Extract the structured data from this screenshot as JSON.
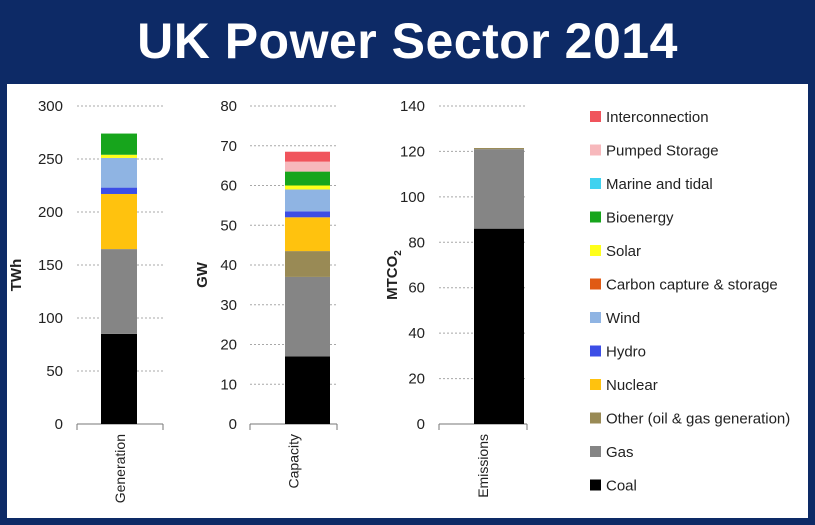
{
  "title": "UK Power Sector 2014",
  "colors": {
    "banner_bg": "#0d2a66",
    "Interconnection": "#f0545c",
    "Pumped Storage": "#f7b8bc",
    "Marine and tidal": "#3fd2f0",
    "Bioenergy": "#17a51c",
    "Solar": "#ffff1a",
    "Carbon capture & storage": "#e05a14",
    "Wind": "#8fb4e3",
    "Hydro": "#3c4ee6",
    "Nuclear": "#ffc20e",
    "Other (oil & gas generation)": "#998a55",
    "Gas": "#858585",
    "Coal": "#000000"
  },
  "legend": [
    "Interconnection",
    "Pumped Storage",
    "Marine and tidal",
    "Bioenergy",
    "Solar",
    "Carbon capture & storage",
    "Wind",
    "Hydro",
    "Nuclear",
    "Other (oil & gas generation)",
    "Gas",
    "Coal"
  ],
  "chart_data": [
    {
      "type": "bar",
      "stacked": true,
      "categories": [
        "Generation"
      ],
      "ylabel": "TWh",
      "ylim": [
        0,
        300
      ],
      "yticks": [
        0,
        50,
        100,
        150,
        200,
        250,
        300
      ],
      "grid": true,
      "series": [
        {
          "name": "Coal",
          "values": [
            85
          ]
        },
        {
          "name": "Gas",
          "values": [
            80
          ]
        },
        {
          "name": "Other (oil & gas generation)",
          "values": [
            0
          ]
        },
        {
          "name": "Nuclear",
          "values": [
            52
          ]
        },
        {
          "name": "Hydro",
          "values": [
            6
          ]
        },
        {
          "name": "Wind",
          "values": [
            28
          ]
        },
        {
          "name": "Carbon capture & storage",
          "values": [
            0
          ]
        },
        {
          "name": "Solar",
          "values": [
            3
          ]
        },
        {
          "name": "Bioenergy",
          "values": [
            20
          ]
        },
        {
          "name": "Marine and tidal",
          "values": [
            0
          ]
        },
        {
          "name": "Pumped Storage",
          "values": [
            0
          ]
        },
        {
          "name": "Interconnection",
          "values": [
            0
          ]
        }
      ]
    },
    {
      "type": "bar",
      "stacked": true,
      "categories": [
        "Capacity"
      ],
      "ylabel": "GW",
      "ylim": [
        0,
        80
      ],
      "yticks": [
        0,
        10,
        20,
        30,
        40,
        50,
        60,
        70,
        80
      ],
      "grid": true,
      "series": [
        {
          "name": "Coal",
          "values": [
            17
          ]
        },
        {
          "name": "Gas",
          "values": [
            20
          ]
        },
        {
          "name": "Other (oil & gas generation)",
          "values": [
            6.5
          ]
        },
        {
          "name": "Nuclear",
          "values": [
            8.5
          ]
        },
        {
          "name": "Hydro",
          "values": [
            1.5
          ]
        },
        {
          "name": "Wind",
          "values": [
            5.5
          ]
        },
        {
          "name": "Carbon capture & storage",
          "values": [
            0
          ]
        },
        {
          "name": "Solar",
          "values": [
            1
          ]
        },
        {
          "name": "Bioenergy",
          "values": [
            3.5
          ]
        },
        {
          "name": "Marine and tidal",
          "values": [
            0
          ]
        },
        {
          "name": "Pumped Storage",
          "values": [
            2.5
          ]
        },
        {
          "name": "Interconnection",
          "values": [
            2.5
          ]
        }
      ]
    },
    {
      "type": "bar",
      "stacked": true,
      "categories": [
        "Emissions"
      ],
      "ylabel": "MTCO2",
      "ylim": [
        0,
        140
      ],
      "yticks": [
        0,
        20,
        40,
        60,
        80,
        100,
        120,
        140
      ],
      "grid": true,
      "series": [
        {
          "name": "Coal",
          "values": [
            86
          ]
        },
        {
          "name": "Gas",
          "values": [
            35
          ]
        },
        {
          "name": "Other (oil & gas generation)",
          "values": [
            0.5
          ]
        }
      ]
    }
  ]
}
